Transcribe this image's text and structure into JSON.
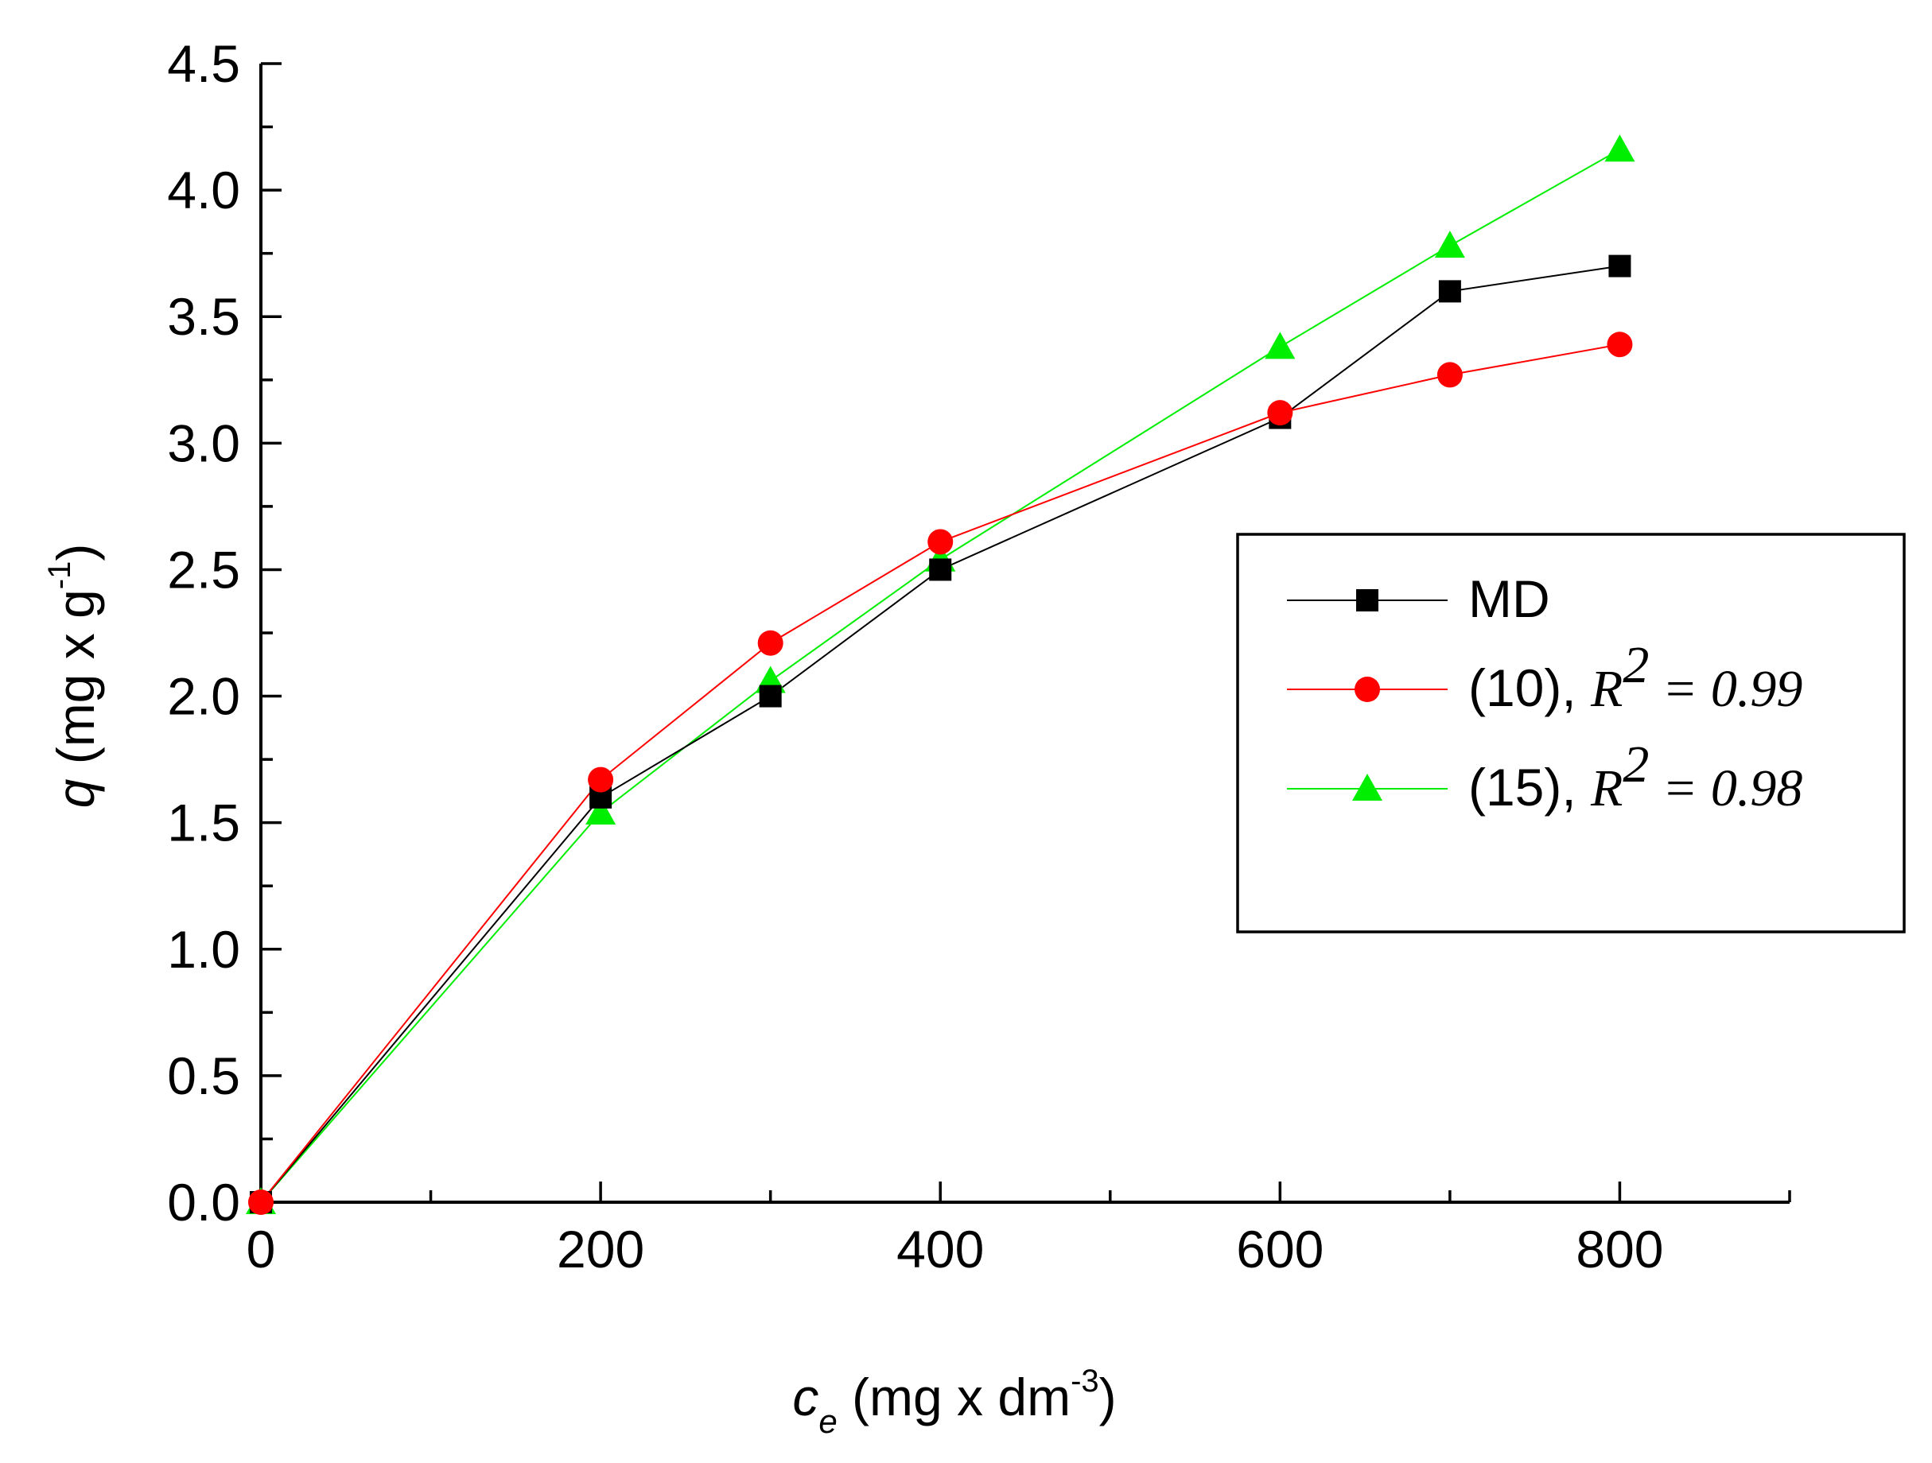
{
  "chart_data": {
    "type": "line",
    "title": "",
    "xlabel": {
      "var": "c",
      "sub": "e",
      "unit": " (mg x dm",
      "sup": "-3",
      "close": ")"
    },
    "ylabel": {
      "var": "q",
      "unit": " (mg x g",
      "sup": "-1",
      "close": ")"
    },
    "xlim": [
      0,
      900
    ],
    "ylim": [
      0,
      4.5
    ],
    "xticks": [
      0,
      200,
      400,
      600,
      800
    ],
    "xtick_labels": [
      "0",
      "200",
      "400",
      "600",
      "800"
    ],
    "yticks": [
      0,
      0.5,
      1.0,
      1.5,
      2.0,
      2.5,
      3.0,
      3.5,
      4.0,
      4.5
    ],
    "ytick_labels": [
      "0.0",
      "0.5",
      "1.0",
      "1.5",
      "2.0",
      "2.5",
      "3.0",
      "3.5",
      "4.0",
      "4.5"
    ],
    "grid": false,
    "legend_position": "right-middle",
    "series": [
      {
        "name": "MD",
        "label": "MD",
        "r2_label": "",
        "r2_sup": "",
        "r2_value": "",
        "color": "#000000",
        "marker": "square",
        "x": [
          0,
          200,
          300,
          400,
          600,
          700,
          800
        ],
        "y": [
          0.0,
          1.6,
          2.0,
          2.5,
          3.1,
          3.6,
          3.7
        ]
      },
      {
        "name": "(10)",
        "label": "(10), ",
        "r2_label": "R",
        "r2_sup": "2",
        "r2_value": " = 0.99",
        "color": "#ff0000",
        "marker": "circle",
        "x": [
          0,
          200,
          300,
          400,
          600,
          700,
          800
        ],
        "y": [
          0.0,
          1.67,
          2.21,
          2.61,
          3.12,
          3.27,
          3.39
        ]
      },
      {
        "name": "(15)",
        "label": "(15), ",
        "r2_label": "R",
        "r2_sup": "2",
        "r2_value": " = 0.98",
        "color": "#00ee00",
        "marker": "triangle",
        "x": [
          0,
          200,
          300,
          400,
          600,
          700,
          800
        ],
        "y": [
          0.0,
          1.54,
          2.06,
          2.54,
          3.38,
          3.78,
          4.16
        ]
      }
    ]
  }
}
